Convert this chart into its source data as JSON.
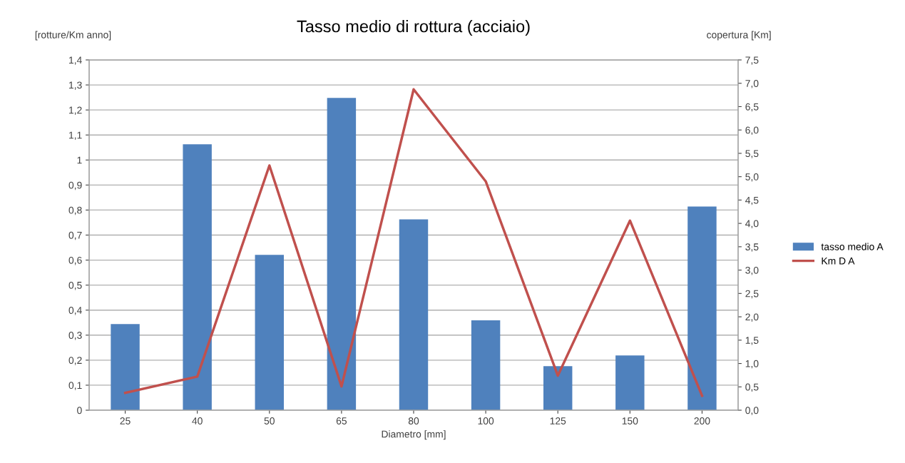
{
  "chart_data": {
    "type": "bar",
    "title": "Tasso medio di rottura (acciaio)",
    "xlabel": "Diametro [mm]",
    "ylabel": "[rotture/Km anno]",
    "y2label": "copertura [Km]",
    "categories": [
      "25",
      "40",
      "50",
      "65",
      "80",
      "100",
      "125",
      "150",
      "200"
    ],
    "series": [
      {
        "name": "tasso medio A",
        "color": "#4f81bd",
        "values": [
          0.344,
          1.063,
          0.621,
          1.248,
          0.763,
          0.359,
          0.176,
          0.219,
          0.814
        ]
      },
      {
        "name": "Km D A",
        "type": "line",
        "axis": "y2",
        "color": "#c0504d",
        "values": [
          0.37,
          0.72,
          5.24,
          0.51,
          6.87,
          4.9,
          0.74,
          4.06,
          0.31
        ]
      }
    ],
    "ylim": [
      0,
      1.4
    ],
    "yticks": [
      0,
      {
        "value": 0.1,
        "label": "0,1"
      },
      {
        "value": 0.2,
        "label": "0,2"
      },
      {
        "value": 0.3,
        "label": "0,3"
      },
      {
        "value": 0.4,
        "label": "0,4"
      },
      {
        "value": 0.5,
        "label": "0,5"
      },
      {
        "value": 0.6,
        "label": "0,6"
      },
      {
        "value": 0.7,
        "label": "0,7"
      },
      {
        "value": 0.8,
        "label": "0,8"
      },
      {
        "value": 0.9,
        "label": "0,9"
      },
      1,
      {
        "value": 1.1,
        "label": "1,1"
      },
      {
        "value": 1.2,
        "label": "1,2"
      },
      {
        "value": 1.3,
        "label": "1,3"
      },
      {
        "value": 1.4,
        "label": "1,4"
      }
    ],
    "y2lim": [
      0,
      7.5
    ],
    "y2ticks": [
      {
        "value": 0,
        "label": "0,0"
      },
      {
        "value": 0.5,
        "label": "0,5"
      },
      {
        "value": 1,
        "label": "1,0"
      },
      {
        "value": 1.5,
        "label": "1,5"
      },
      {
        "value": 2,
        "label": "2,0"
      },
      {
        "value": 2.5,
        "label": "2,5"
      },
      {
        "value": 3,
        "label": "3,0"
      },
      {
        "value": 3.5,
        "label": "3,5"
      },
      {
        "value": 4,
        "label": "4,0"
      },
      {
        "value": 4.5,
        "label": "4,5"
      },
      {
        "value": 5,
        "label": "5,0"
      },
      {
        "value": 5.5,
        "label": "5,5"
      },
      {
        "value": 6,
        "label": "6,0"
      },
      {
        "value": 6.5,
        "label": "6,5"
      },
      {
        "value": 7,
        "label": "7,0"
      },
      {
        "value": 7.5,
        "label": "7,5"
      }
    ],
    "grid": "y",
    "legend": "right",
    "marker": "none",
    "line_style": "solid"
  }
}
